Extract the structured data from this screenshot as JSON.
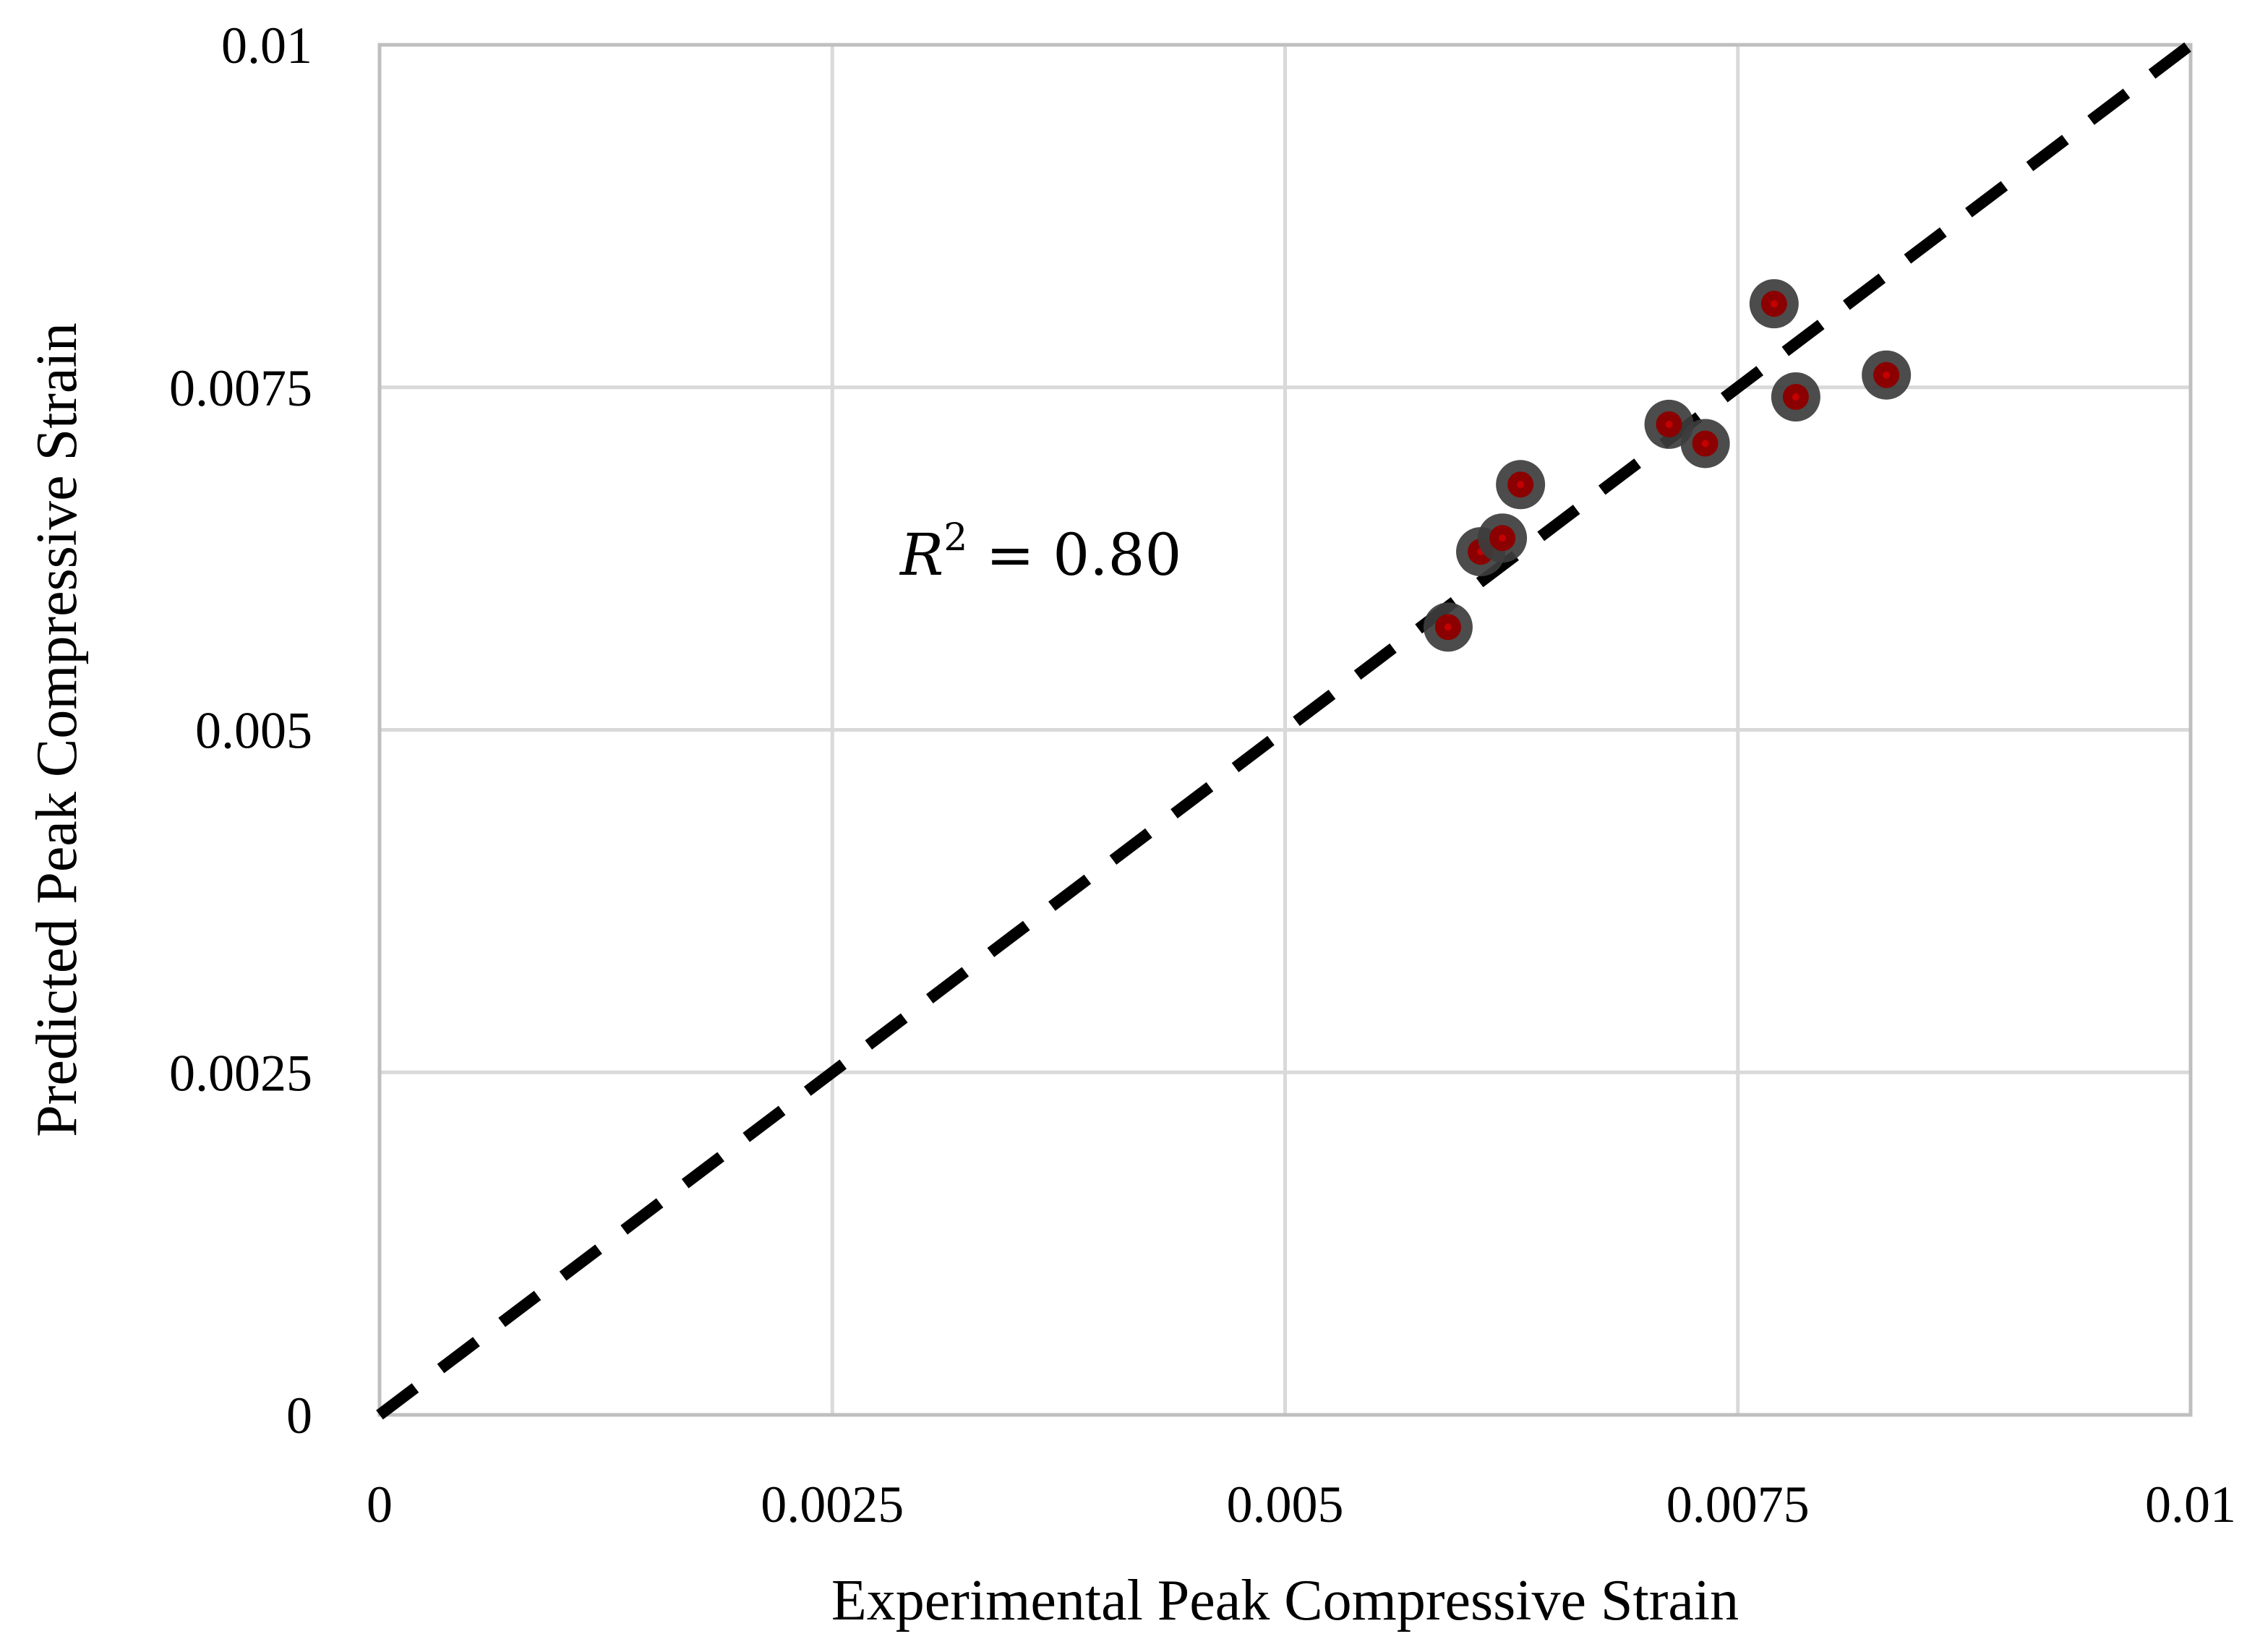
{
  "chart_data": {
    "type": "scatter",
    "title": "",
    "xlabel": "Experimental Peak Compressive Strain",
    "ylabel": "Predicted Peak Compressive Strain",
    "xlim": [
      0,
      0.01
    ],
    "ylim": [
      0,
      0.01
    ],
    "x_ticks": [
      0,
      0.0025,
      0.005,
      0.0075,
      0.01
    ],
    "y_ticks": [
      0,
      0.0025,
      0.005,
      0.0075,
      0.01
    ],
    "x_tick_labels": [
      "0",
      "0.0025",
      "0.005",
      "0.0075",
      "0.01"
    ],
    "y_tick_labels": [
      "0",
      "0.0025",
      "0.005",
      "0.0075",
      "0.01"
    ],
    "grid": true,
    "legend": "none",
    "series": [
      {
        "points": [
          {
            "x": 0.0059,
            "y": 0.00575
          },
          {
            "x": 0.00608,
            "y": 0.0063
          },
          {
            "x": 0.0062,
            "y": 0.0064
          },
          {
            "x": 0.0063,
            "y": 0.00679
          },
          {
            "x": 0.00712,
            "y": 0.00723
          },
          {
            "x": 0.00732,
            "y": 0.00709
          },
          {
            "x": 0.0077,
            "y": 0.00811
          },
          {
            "x": 0.00782,
            "y": 0.00743
          },
          {
            "x": 0.00832,
            "y": 0.00759
          }
        ],
        "marker_color": "#3d3d3d",
        "marker_center_color": "#8b0000"
      }
    ],
    "reference_line": {
      "from": [
        0,
        0
      ],
      "to": [
        0.01,
        0.01
      ],
      "style": "dashed",
      "color": "#000000"
    },
    "annotation": {
      "base": "R",
      "sup": "2",
      "rest": " = 0.80"
    }
  }
}
